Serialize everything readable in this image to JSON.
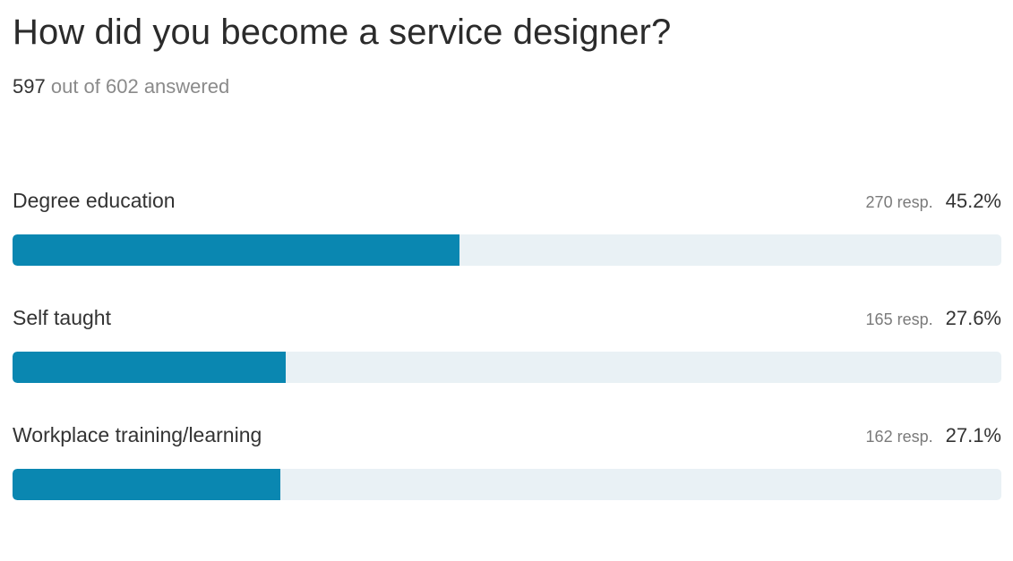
{
  "question": {
    "title": "How did you become a service designer?",
    "answered_count": "597",
    "answered_rest": "out of 602 answered"
  },
  "chart_data": {
    "type": "bar",
    "orientation": "horizontal",
    "title": "How did you become a service designer?",
    "answered": 597,
    "total": 602,
    "categories": [
      "Degree education",
      "Self taught",
      "Workplace training/learning"
    ],
    "responses": [
      270,
      165,
      162
    ],
    "percentages": [
      45.2,
      27.6,
      27.1
    ],
    "rows": [
      {
        "label": "Degree education",
        "resp_text": "270 resp.",
        "pct_text": "45.2%",
        "value": 45.2
      },
      {
        "label": "Self taught",
        "resp_text": "165 resp.",
        "pct_text": "27.6%",
        "value": 27.6
      },
      {
        "label": "Workplace training/learning",
        "resp_text": "162 resp.",
        "pct_text": "27.1%",
        "value": 27.1
      }
    ],
    "xlim": [
      0,
      100
    ]
  },
  "colors": {
    "fill": "#0a87b1",
    "track": "#e9f1f5"
  }
}
